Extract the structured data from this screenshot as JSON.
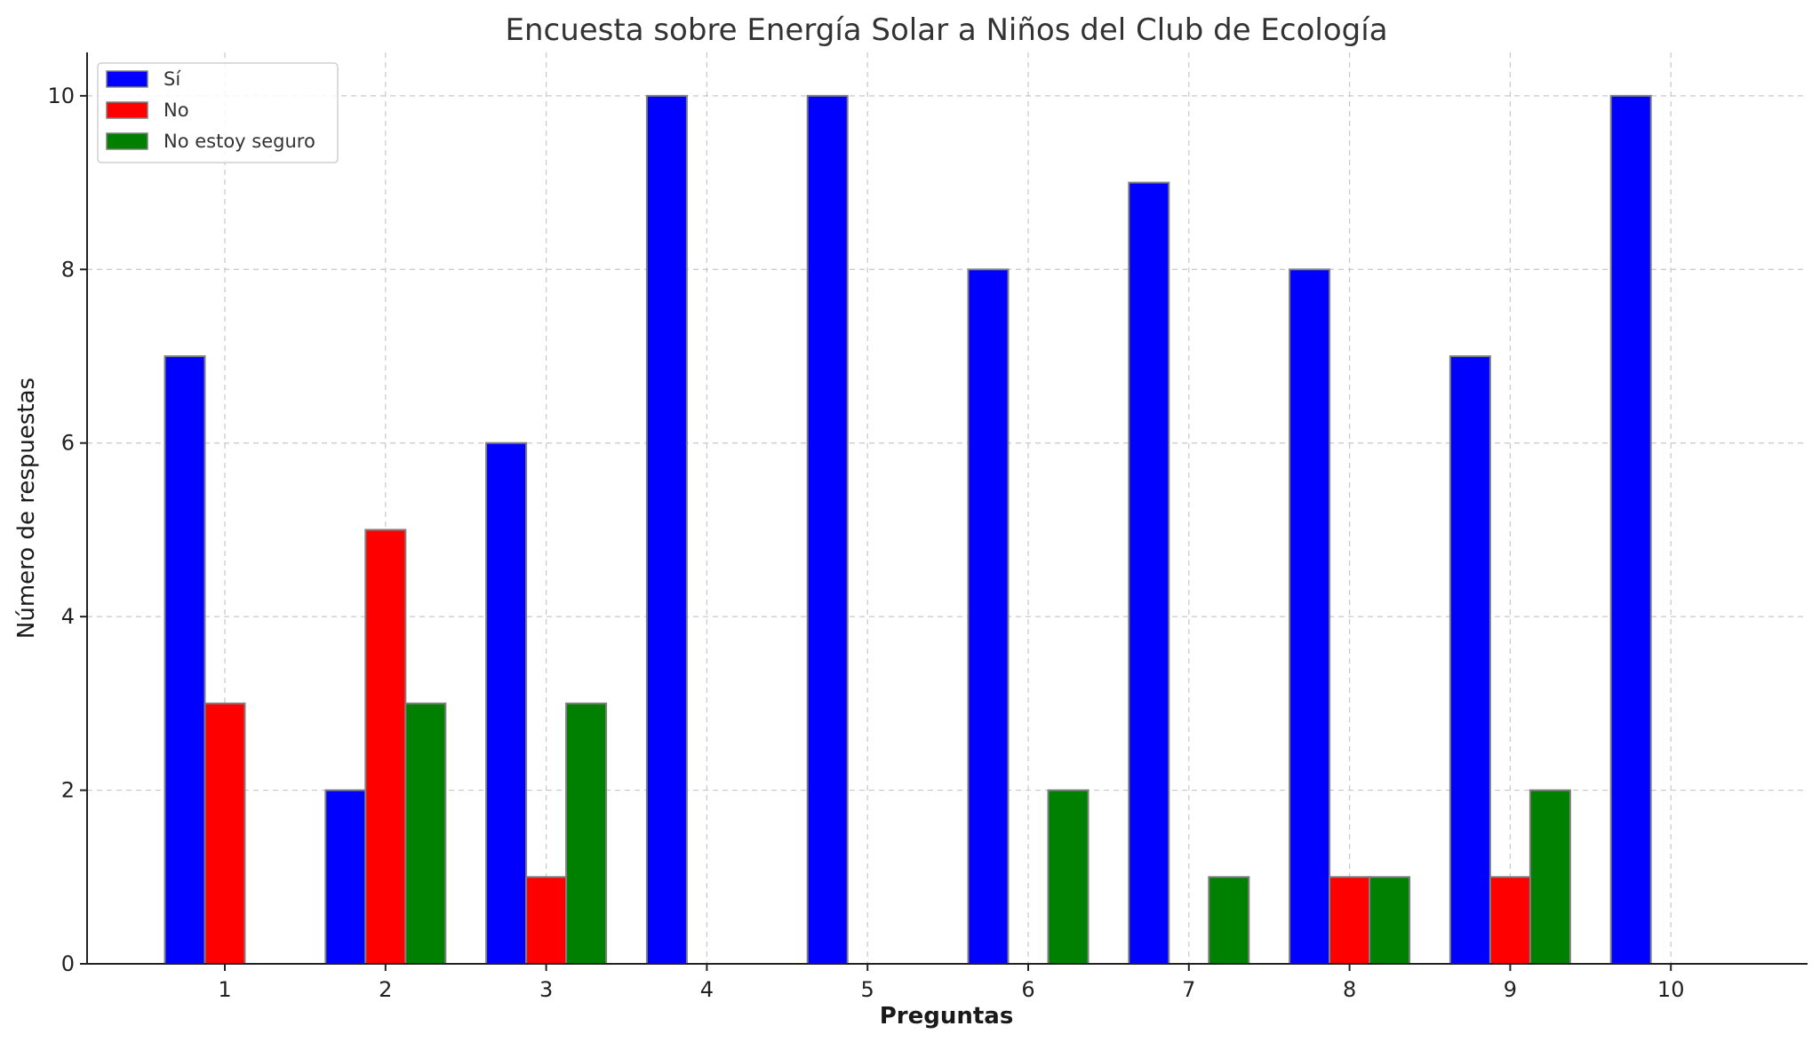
{
  "chart_data": {
    "type": "bar",
    "title": "Encuesta sobre Energía Solar a Niños del Club de Ecología",
    "xlabel": "Preguntas",
    "ylabel": "Número de respuestas",
    "categories": [
      "1",
      "2",
      "3",
      "4",
      "5",
      "6",
      "7",
      "8",
      "9",
      "10"
    ],
    "series": [
      {
        "name": "Sí",
        "color": "#0000ff",
        "values": [
          7,
          2,
          6,
          10,
          10,
          8,
          9,
          8,
          7,
          10
        ]
      },
      {
        "name": "No",
        "color": "#ff0000",
        "values": [
          3,
          5,
          1,
          0,
          0,
          0,
          0,
          1,
          1,
          0
        ]
      },
      {
        "name": "No estoy seguro",
        "color": "#008000",
        "values": [
          0,
          3,
          3,
          0,
          0,
          2,
          1,
          1,
          2,
          0
        ]
      }
    ],
    "yticks": [
      "0",
      "2",
      "4",
      "6",
      "8",
      "10"
    ],
    "ylim": [
      0,
      10.5
    ],
    "grid": true,
    "legend_position": "top-left"
  }
}
